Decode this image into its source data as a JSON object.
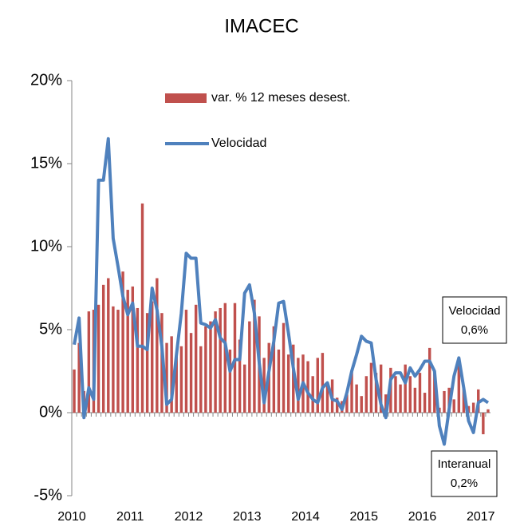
{
  "chart_data": {
    "type": "bar_line",
    "title": "IMACEC",
    "categories": [
      "2010",
      null,
      null,
      null,
      null,
      null,
      null,
      null,
      null,
      null,
      null,
      null,
      "2011",
      null,
      null,
      null,
      null,
      null,
      null,
      null,
      null,
      null,
      null,
      null,
      "2012",
      null,
      null,
      null,
      null,
      null,
      null,
      null,
      null,
      null,
      null,
      null,
      "2013",
      null,
      null,
      null,
      null,
      null,
      null,
      null,
      null,
      null,
      null,
      null,
      "2014",
      null,
      null,
      null,
      null,
      null,
      null,
      null,
      null,
      null,
      null,
      null,
      "2015",
      null,
      null,
      null,
      null,
      null,
      null,
      null,
      null,
      null,
      null,
      null,
      "2016",
      null,
      null,
      null,
      null,
      null,
      null,
      null,
      null,
      null,
      null,
      null,
      "2017",
      null
    ],
    "series": [
      {
        "name": "var. % 12 meses desest.",
        "type": "bar",
        "color": "#c0504d",
        "values": [
          2.6,
          4.2,
          1.3,
          6.1,
          6.2,
          6.5,
          7.7,
          8.1,
          6.4,
          6.2,
          8.5,
          7.4,
          7.6,
          6.3,
          12.6,
          6.0,
          6.7,
          8.1,
          6.0,
          4.2,
          4.6,
          3.5,
          4.0,
          6.2,
          4.8,
          6.5,
          4.0,
          5.2,
          5.5,
          6.1,
          6.3,
          6.6,
          3.8,
          6.6,
          4.4,
          2.9,
          5.5,
          6.8,
          5.8,
          3.3,
          4.2,
          5.2,
          3.8,
          5.4,
          3.5,
          4.1,
          3.3,
          3.5,
          3.1,
          2.2,
          3.3,
          3.6,
          1.8,
          2.0,
          0.9,
          0.7,
          1.1,
          2.5,
          1.7,
          1.0,
          2.2,
          3.0,
          2.4,
          2.9,
          1.1,
          2.7,
          2.2,
          1.7,
          2.9,
          2.2,
          1.5,
          2.4,
          1.2,
          3.9,
          2.5,
          0.3,
          1.3,
          1.5,
          0.8,
          2.9,
          1.5,
          0.4,
          0.6,
          1.4,
          -1.3,
          0.2
        ]
      },
      {
        "name": "Velocidad",
        "type": "line",
        "color": "#4f81bd",
        "values": [
          4.1,
          5.7,
          -0.3,
          1.5,
          0.8,
          14.0,
          14.0,
          16.5,
          10.5,
          8.8,
          7.0,
          5.9,
          6.6,
          4.0,
          4.0,
          3.8,
          7.5,
          6.2,
          4.0,
          0.5,
          0.8,
          3.5,
          6.0,
          9.6,
          9.3,
          9.3,
          5.4,
          5.3,
          5.1,
          5.6,
          4.5,
          4.2,
          2.5,
          3.2,
          3.2,
          7.2,
          7.7,
          6.0,
          3.0,
          0.6,
          2.5,
          4.3,
          6.6,
          6.7,
          4.8,
          2.7,
          0.8,
          1.8,
          1.2,
          0.8,
          0.6,
          1.5,
          1.8,
          0.8,
          0.7,
          0.2,
          1.2,
          2.5,
          3.5,
          4.6,
          4.3,
          4.2,
          2.0,
          0.5,
          -0.3,
          2.0,
          2.4,
          2.4,
          1.8,
          2.7,
          2.2,
          2.6,
          3.1,
          3.1,
          2.5,
          -0.8,
          -1.9,
          0.2,
          2.2,
          3.3,
          1.5,
          -0.5,
          -1.2,
          0.6,
          0.8,
          0.6
        ]
      }
    ],
    "ylim": [
      -5,
      20
    ],
    "yticks": [
      {
        "value": -5,
        "label": "-5%"
      },
      {
        "value": 0,
        "label": "0%"
      },
      {
        "value": 5,
        "label": "5%"
      },
      {
        "value": 10,
        "label": "10%"
      },
      {
        "value": 15,
        "label": "15%"
      },
      {
        "value": 20,
        "label": "20%"
      }
    ],
    "annotations": [
      {
        "lines": [
          "Velocidad",
          "0,6%"
        ]
      },
      {
        "lines": [
          "Interanual",
          "0,2%"
        ]
      }
    ]
  }
}
